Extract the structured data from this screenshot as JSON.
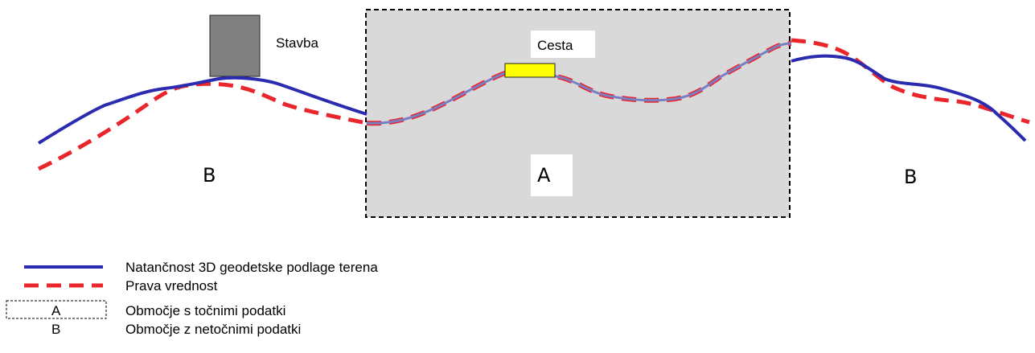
{
  "labels": {
    "building": "Stavba",
    "road": "Cesta",
    "region_a": "A",
    "region_b_left": "B",
    "region_b_right": "B"
  },
  "legend": {
    "blue_line": "Natančnost 3D geodetske podlage terena",
    "red_dashed": "Prava vrednost",
    "box_a_symbol": "A",
    "box_a_text": "Območje s točnimi podatki",
    "b_symbol": "B",
    "b_text": "Območje z netočnimi podatki"
  },
  "colors": {
    "accuracy_line": "#2b2bb0",
    "true_value": "#e8262b",
    "accurate_zone_fill": "#d9d9d9",
    "building_fill": "#808080",
    "road_fill": "#ffff00"
  }
}
